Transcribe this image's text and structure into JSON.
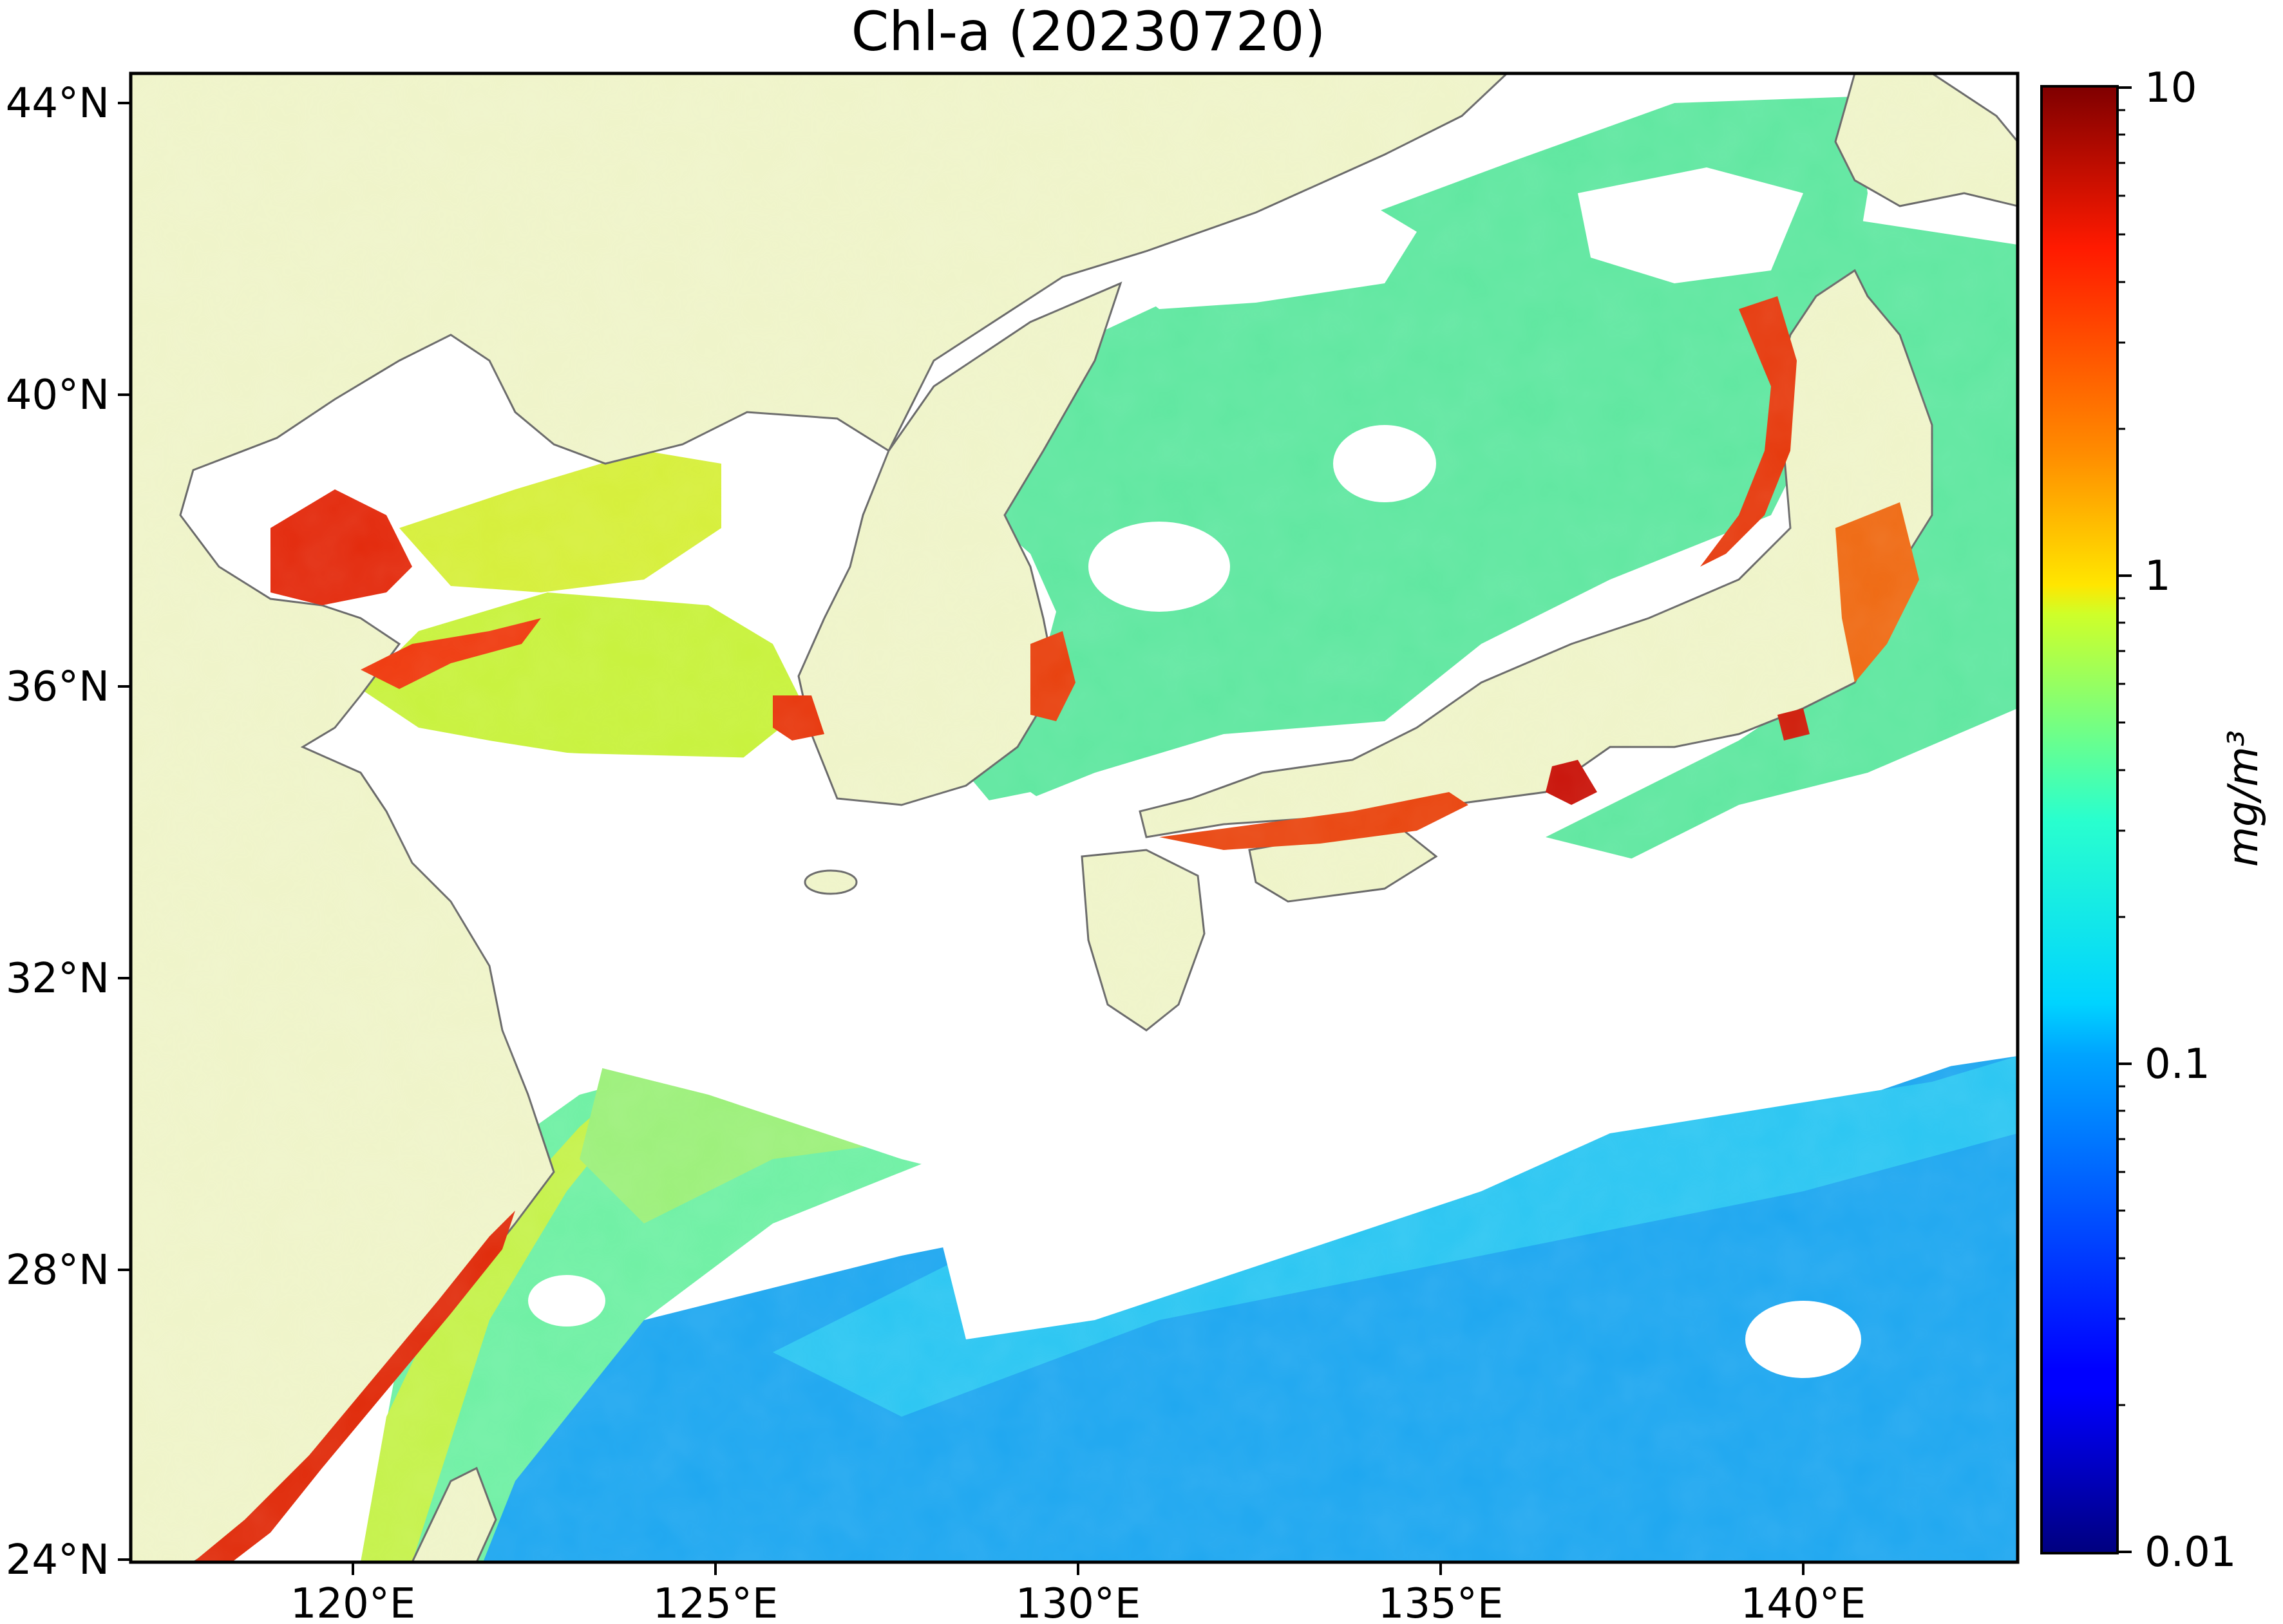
{
  "title": "Chl-a (20230720)",
  "lat_ticks": [
    "44°N",
    "40°N",
    "36°N",
    "32°N",
    "28°N",
    "24°N"
  ],
  "lon_ticks": [
    "120°E",
    "125°E",
    "130°E",
    "135°E",
    "140°E"
  ],
  "colorbar": {
    "ticks": [
      "10",
      "1",
      "0.1",
      "0.01"
    ],
    "label": "mg/m³",
    "scale": "log",
    "min": 0.01,
    "max": 10,
    "colormap": "jet"
  },
  "colors": {
    "land": "#eff4c9",
    "no_data": "#ffffff",
    "coastline": "#666666"
  }
}
